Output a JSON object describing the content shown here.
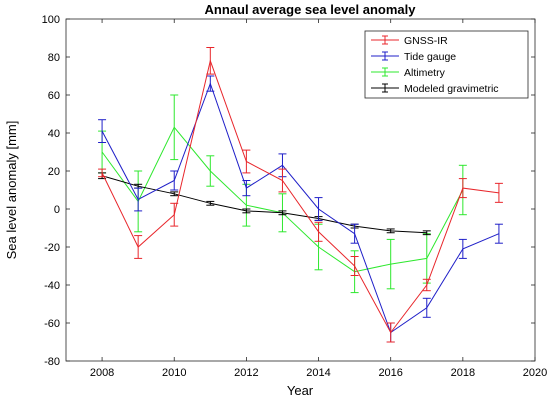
{
  "chart_data": {
    "type": "line",
    "title": "Annaul average sea level anomaly",
    "xlabel": "Year",
    "ylabel": "Sea level anomaly [mm]",
    "xlim": [
      2007,
      2020
    ],
    "ylim": [
      -80,
      100
    ],
    "xticks": [
      2008,
      2010,
      2012,
      2014,
      2016,
      2018,
      2020
    ],
    "yticks": [
      -80,
      -60,
      -40,
      -20,
      0,
      20,
      40,
      60,
      80,
      100
    ],
    "grid": false,
    "legend_position": "top-right",
    "series": [
      {
        "name": "GNSS-IR",
        "color": "#e8262b",
        "x": [
          2008,
          2009,
          2010,
          2011,
          2012,
          2013,
          2014,
          2015,
          2016,
          2017,
          2018,
          2019
        ],
        "y": [
          19,
          -20,
          -3,
          78,
          25,
          15,
          -12,
          -30,
          -65,
          -40,
          11,
          8.5
        ],
        "err": [
          2,
          6,
          6,
          7,
          6,
          6,
          5,
          5,
          5,
          3,
          5,
          5
        ]
      },
      {
        "name": "Tide gauge",
        "color": "#1f1fc8",
        "x": [
          2008,
          2009,
          2010,
          2011,
          2012,
          2013,
          2014,
          2015,
          2016,
          2017,
          2018,
          2019
        ],
        "y": [
          41,
          5,
          15,
          66,
          11,
          23,
          0,
          -13,
          -65,
          -52,
          -21,
          -13
        ],
        "err": [
          6,
          6,
          5,
          4,
          4,
          6,
          6,
          5,
          5,
          5,
          5,
          5
        ]
      },
      {
        "name": "Altimetry",
        "color": "#2ee82e",
        "x": [
          2008,
          2009,
          2010,
          2011,
          2012,
          2013,
          2014,
          2015,
          2016,
          2017,
          2018
        ],
        "y": [
          30,
          4,
          43,
          20,
          2,
          -2,
          -20,
          -33,
          -29,
          -26,
          10
        ],
        "err": [
          11,
          16,
          17,
          8,
          11,
          10,
          12,
          11,
          13,
          13,
          13
        ]
      },
      {
        "name": "Modeled gravimetric",
        "color": "#000000",
        "x": [
          2008,
          2009,
          2010,
          2011,
          2012,
          2013,
          2014,
          2015,
          2016,
          2017
        ],
        "y": [
          17.5,
          12,
          8,
          3,
          -1,
          -2,
          -5,
          -9,
          -11.5,
          -12.5
        ],
        "err": [
          1.5,
          1,
          1,
          1,
          1,
          1,
          1,
          1,
          1,
          1
        ]
      }
    ]
  }
}
